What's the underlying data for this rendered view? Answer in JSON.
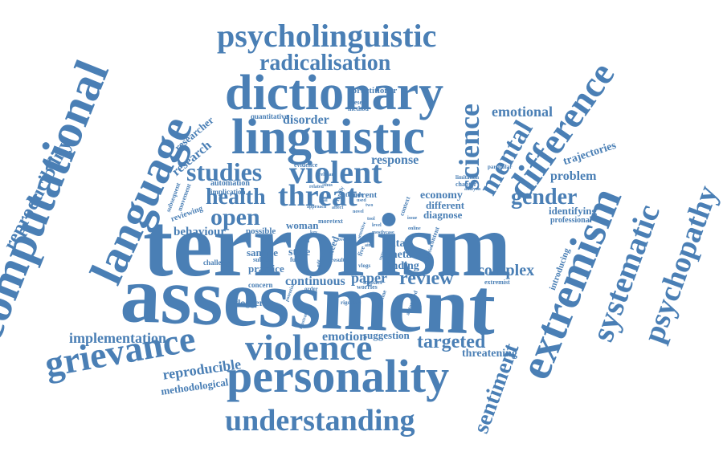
{
  "word_color": "#4a7fb5",
  "words": [
    {
      "id": "terrorism",
      "text": "terrorism"
    },
    {
      "id": "assessment",
      "text": "assessment"
    },
    {
      "id": "computational",
      "text": "computational"
    },
    {
      "id": "language",
      "text": "language"
    },
    {
      "id": "linguistic",
      "text": "linguistic"
    },
    {
      "id": "dictionary",
      "text": "dictionary"
    },
    {
      "id": "personality",
      "text": "personality"
    },
    {
      "id": "extremism",
      "text": "extremism"
    },
    {
      "id": "violence",
      "text": "violence"
    },
    {
      "id": "grievance",
      "text": "grievance"
    },
    {
      "id": "psycholinguistic",
      "text": "psycholinguistic"
    },
    {
      "id": "understanding",
      "text": "understanding"
    },
    {
      "id": "difference",
      "text": "difference"
    },
    {
      "id": "systematic",
      "text": "systematic"
    },
    {
      "id": "psychopathy",
      "text": "psychopathy"
    },
    {
      "id": "threat",
      "text": "threat"
    },
    {
      "id": "violent",
      "text": "violent"
    },
    {
      "id": "radicalisation",
      "text": "radicalisation"
    },
    {
      "id": "science",
      "text": "science"
    },
    {
      "id": "mental",
      "text": "mental"
    },
    {
      "id": "studies",
      "text": "studies"
    },
    {
      "id": "health",
      "text": "health"
    },
    {
      "id": "open",
      "text": "open"
    },
    {
      "id": "gender",
      "text": "gender"
    },
    {
      "id": "reproducibility",
      "text": "reproducibility"
    },
    {
      "id": "sentiment",
      "text": "sentiment"
    },
    {
      "id": "targeted",
      "text": "targeted"
    },
    {
      "id": "review",
      "text": "review"
    },
    {
      "id": "complex",
      "text": "complex"
    },
    {
      "id": "paper",
      "text": "paper"
    },
    {
      "id": "emotional",
      "text": "emotional"
    },
    {
      "id": "reproducible",
      "text": "reproducible"
    },
    {
      "id": "implementation",
      "text": "implementation"
    },
    {
      "id": "emotion",
      "text": "emotion"
    },
    {
      "id": "continuous",
      "text": "continuous"
    },
    {
      "id": "research",
      "text": "research"
    },
    {
      "id": "disorder",
      "text": "disorder"
    },
    {
      "id": "response",
      "text": "response"
    },
    {
      "id": "problem",
      "text": "problem"
    },
    {
      "id": "trajectories",
      "text": "trajectories"
    },
    {
      "id": "researcher",
      "text": "researcher"
    },
    {
      "id": "behaviour",
      "text": "behaviour"
    },
    {
      "id": "threatening",
      "text": "threatening"
    },
    {
      "id": "economy",
      "text": "economy"
    },
    {
      "id": "identifying",
      "text": "identifying"
    },
    {
      "id": "methodological",
      "text": "methodological"
    },
    {
      "id": "suggestion",
      "text": "suggestion"
    },
    {
      "id": "different",
      "text": "different"
    },
    {
      "id": "diagnose",
      "text": "diagnose"
    },
    {
      "id": "meta",
      "text": "meta"
    },
    {
      "id": "finding",
      "text": "finding"
    },
    {
      "id": "data",
      "text": "data"
    },
    {
      "id": "style",
      "text": "style"
    },
    {
      "id": "woman",
      "text": "woman"
    },
    {
      "id": "sample",
      "text": "sample"
    },
    {
      "id": "practice",
      "text": "practice"
    },
    {
      "id": "professional",
      "text": "professional"
    },
    {
      "id": "introducing",
      "text": "introducing"
    },
    {
      "id": "practitioner",
      "text": "practitioner"
    },
    {
      "id": "vloggers",
      "text": "vloggers"
    },
    {
      "id": "quantitative",
      "text": "quantitative"
    },
    {
      "id": "automation",
      "text": "automation"
    },
    {
      "id": "reviewing",
      "text": "reviewing"
    },
    {
      "id": "implication",
      "text": "implication"
    },
    {
      "id": "need",
      "text": "need"
    },
    {
      "id": "current",
      "text": "current"
    },
    {
      "id": "possible",
      "text": "possible"
    },
    {
      "id": "challenge",
      "text": "challenge"
    },
    {
      "id": "concern",
      "text": "concern"
    },
    {
      "id": "subject",
      "text": "subject"
    },
    {
      "id": "extremist",
      "text": "extremist"
    },
    {
      "id": "evidence",
      "text": "evidence"
    },
    {
      "id": "attitude",
      "text": "attitude"
    },
    {
      "id": "limitation",
      "text": "limitation"
    },
    {
      "id": "chapter",
      "text": "chapter"
    },
    {
      "id": "particular",
      "text": "particular"
    },
    {
      "id": "present",
      "text": "present"
    },
    {
      "id": "method",
      "text": "method"
    },
    {
      "id": "analysis",
      "text": "analysis"
    },
    {
      "id": "impact",
      "text": "impact"
    },
    {
      "id": "worries",
      "text": "worries"
    },
    {
      "id": "rigorous",
      "text": "rigorous"
    },
    {
      "id": "automated",
      "text": "automated"
    },
    {
      "id": "illustrate",
      "text": "illustrate"
    },
    {
      "id": "subsequent",
      "text": "subsequent"
    },
    {
      "id": "movement",
      "text": "movement"
    },
    {
      "id": "future",
      "text": "future"
    },
    {
      "id": "effect",
      "text": "effect"
    },
    {
      "id": "context",
      "text": "context"
    },
    {
      "id": "text",
      "text": "text"
    },
    {
      "id": "more",
      "text": "more"
    },
    {
      "id": "order",
      "text": "order"
    },
    {
      "id": "issue",
      "text": "issue"
    },
    {
      "id": "result",
      "text": "result"
    },
    {
      "id": "vlogs",
      "text": "vlogs"
    },
    {
      "id": "related",
      "text": "related"
    },
    {
      "id": "family",
      "text": "family"
    },
    {
      "id": "survey",
      "text": "survey"
    },
    {
      "id": "intention",
      "text": "intention"
    },
    {
      "id": "content",
      "text": "content"
    },
    {
      "id": "potential",
      "text": "potential"
    },
    {
      "id": "examine",
      "text": "examine"
    },
    {
      "id": "overall",
      "text": "overall"
    },
    {
      "id": "relevant",
      "text": "relevant"
    },
    {
      "id": "novel",
      "text": "novel"
    },
    {
      "id": "tool",
      "text": "tool"
    },
    {
      "id": "sensitive",
      "text": "sensitive"
    },
    {
      "id": "online",
      "text": "online"
    },
    {
      "id": "aim",
      "text": "aim"
    },
    {
      "id": "key",
      "text": "key"
    },
    {
      "id": "goal",
      "text": "goal"
    },
    {
      "id": "affect",
      "text": "affect"
    },
    {
      "id": "approach",
      "text": "approach"
    },
    {
      "id": "five",
      "text": "five"
    },
    {
      "id": "mostly",
      "text": "mostly"
    },
    {
      "id": "level",
      "text": "level"
    },
    {
      "id": "area",
      "text": "area"
    },
    {
      "id": "role",
      "text": "role"
    },
    {
      "id": "case",
      "text": "case"
    },
    {
      "id": "thus",
      "text": "thus"
    },
    {
      "id": "used",
      "text": "used"
    },
    {
      "id": "two",
      "text": "two"
    }
  ]
}
